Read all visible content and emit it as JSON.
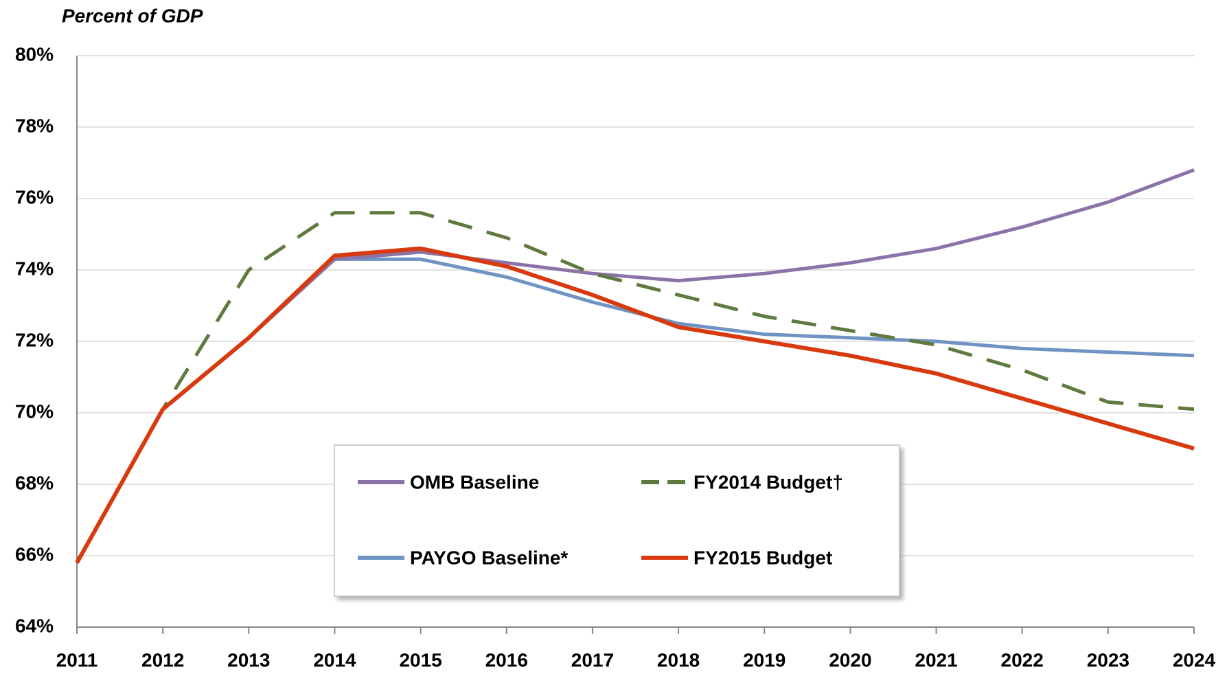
{
  "chart_data": {
    "type": "line",
    "y_label": "Percent of GDP",
    "categories": [
      "2011",
      "2012",
      "2013",
      "2014",
      "2015",
      "2016",
      "2017",
      "2018",
      "2019",
      "2020",
      "2021",
      "2022",
      "2023",
      "2024"
    ],
    "series": [
      {
        "name": "OMB Baseline",
        "color": "#8b73a8",
        "values": [
          65.8,
          70.1,
          72.1,
          74.3,
          74.5,
          74.2,
          73.9,
          73.7,
          73.9,
          74.2,
          74.6,
          75.2,
          75.9,
          76.8
        ]
      },
      {
        "name": "FY2014 Budget†",
        "color": "#5f7a3e",
        "dashed": true,
        "values": [
          65.8,
          70.1,
          74.0,
          75.6,
          75.6,
          74.9,
          73.9,
          73.3,
          72.7,
          72.3,
          71.9,
          71.2,
          70.3,
          70.1
        ]
      },
      {
        "name": "PAYGO Baseline*",
        "color": "#6f93c2",
        "values": [
          65.8,
          70.1,
          72.1,
          74.3,
          74.3,
          73.8,
          73.1,
          72.5,
          72.2,
          72.1,
          72.0,
          71.8,
          71.7,
          71.6
        ]
      },
      {
        "name": "FY2015 Budget",
        "color": "#d83a0f",
        "values": [
          65.8,
          70.1,
          72.1,
          74.4,
          74.6,
          74.1,
          73.3,
          72.4,
          72.0,
          71.6,
          71.1,
          70.4,
          69.7,
          69.0
        ]
      }
    ],
    "ylim": [
      64,
      80
    ],
    "yticks": [
      {
        "value": 64,
        "label": "64%"
      },
      {
        "value": 66,
        "label": "66%"
      },
      {
        "value": 68,
        "label": "68%"
      },
      {
        "value": 70,
        "label": "70%"
      },
      {
        "value": 72,
        "label": "72%"
      },
      {
        "value": 74,
        "label": "74%"
      },
      {
        "value": 76,
        "label": "76%"
      },
      {
        "value": 78,
        "label": "78%"
      },
      {
        "value": 80,
        "label": "80%"
      }
    ],
    "grid": true
  }
}
